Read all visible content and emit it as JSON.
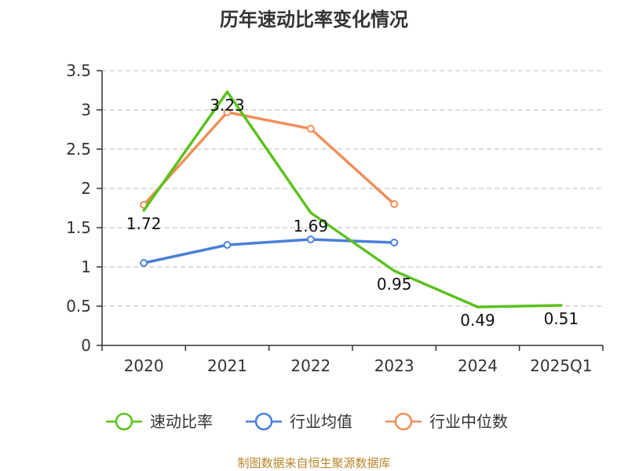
{
  "chart_data": {
    "type": "line",
    "title": "历年速动比率变化情况",
    "categories": [
      "2020",
      "2021",
      "2022",
      "2023",
      "2024",
      "2025Q1"
    ],
    "ylim": [
      0,
      3.5
    ],
    "yticks": [
      "0",
      "0.5",
      "1",
      "1.5",
      "2",
      "2.5",
      "3",
      "3.5"
    ],
    "grid": true,
    "legend_position": "bottom",
    "series": [
      {
        "name": "速动比率",
        "color": "#5cc11f",
        "values": [
          1.72,
          3.23,
          1.69,
          0.95,
          0.49,
          0.51
        ],
        "labels": [
          "1.72",
          "3.23",
          "1.69",
          "0.95",
          "0.49",
          "0.51"
        ],
        "show_markers": false
      },
      {
        "name": "行业均值",
        "color": "#4a7fd8",
        "values": [
          1.05,
          1.28,
          1.35,
          1.31,
          null,
          null
        ],
        "show_markers": true
      },
      {
        "name": "行业中位数",
        "color": "#f08f5a",
        "values": [
          1.79,
          2.97,
          2.76,
          1.8,
          null,
          null
        ],
        "show_markers": true
      }
    ]
  },
  "source": "制图数据来自恒生聚源数据库"
}
